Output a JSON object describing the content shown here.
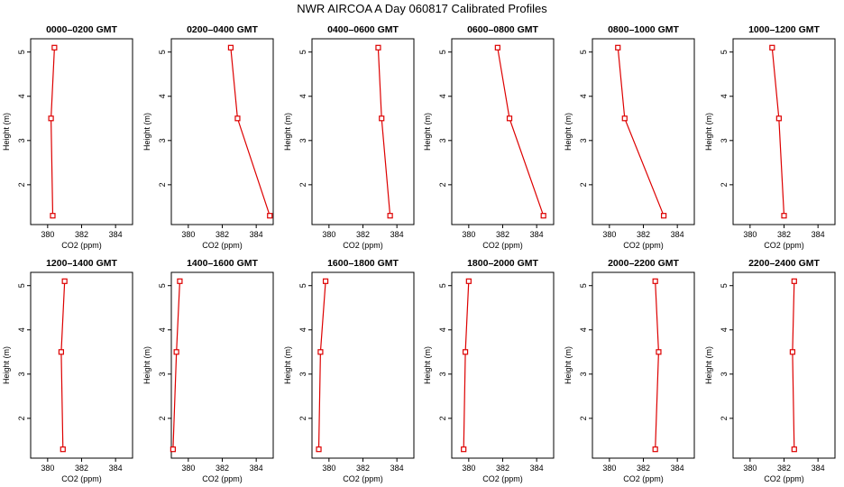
{
  "figure": {
    "title": "NWR AIRCOA A  Day 060817  Calibrated Profiles"
  },
  "chart_data": [
    {
      "type": "line",
      "title": "0000–0200 GMT",
      "xlabel": "CO2 (ppm)",
      "ylabel": "Height (m)",
      "xlim": [
        379,
        385
      ],
      "ylim": [
        1.1,
        5.3
      ],
      "xticks": [
        380,
        382,
        384
      ],
      "yticks": [
        2,
        3,
        4,
        5
      ],
      "series": [
        {
          "name": "profile",
          "color": "#dd0000",
          "points": [
            {
              "x": 380.3,
              "y": 1.3
            },
            {
              "x": 380.2,
              "y": 3.5
            },
            {
              "x": 380.4,
              "y": 5.1
            }
          ]
        }
      ]
    },
    {
      "type": "line",
      "title": "0200–0400 GMT",
      "xlabel": "CO2 (ppm)",
      "ylabel": "Height (m)",
      "xlim": [
        379,
        385
      ],
      "ylim": [
        1.1,
        5.3
      ],
      "xticks": [
        380,
        382,
        384
      ],
      "yticks": [
        2,
        3,
        4,
        5
      ],
      "series": [
        {
          "name": "profile",
          "color": "#dd0000",
          "points": [
            {
              "x": 384.8,
              "y": 1.3
            },
            {
              "x": 382.9,
              "y": 3.5
            },
            {
              "x": 382.5,
              "y": 5.1
            }
          ]
        }
      ]
    },
    {
      "type": "line",
      "title": "0400–0600 GMT",
      "xlabel": "CO2 (ppm)",
      "ylabel": "Height (m)",
      "xlim": [
        379,
        385
      ],
      "ylim": [
        1.1,
        5.3
      ],
      "xticks": [
        380,
        382,
        384
      ],
      "yticks": [
        2,
        3,
        4,
        5
      ],
      "series": [
        {
          "name": "profile",
          "color": "#dd0000",
          "points": [
            {
              "x": 383.6,
              "y": 1.3
            },
            {
              "x": 383.1,
              "y": 3.5
            },
            {
              "x": 382.9,
              "y": 5.1
            }
          ]
        }
      ]
    },
    {
      "type": "line",
      "title": "0600–0800 GMT",
      "xlabel": "CO2 (ppm)",
      "ylabel": "Height (m)",
      "xlim": [
        379,
        385
      ],
      "ylim": [
        1.1,
        5.3
      ],
      "xticks": [
        380,
        382,
        384
      ],
      "yticks": [
        2,
        3,
        4,
        5
      ],
      "series": [
        {
          "name": "profile",
          "color": "#dd0000",
          "points": [
            {
              "x": 384.4,
              "y": 1.3
            },
            {
              "x": 382.4,
              "y": 3.5
            },
            {
              "x": 381.7,
              "y": 5.1
            }
          ]
        }
      ]
    },
    {
      "type": "line",
      "title": "0800–1000 GMT",
      "xlabel": "CO2 (ppm)",
      "ylabel": "Height (m)",
      "xlim": [
        379,
        385
      ],
      "ylim": [
        1.1,
        5.3
      ],
      "xticks": [
        380,
        382,
        384
      ],
      "yticks": [
        2,
        3,
        4,
        5
      ],
      "series": [
        {
          "name": "profile",
          "color": "#dd0000",
          "points": [
            {
              "x": 383.2,
              "y": 1.3
            },
            {
              "x": 380.9,
              "y": 3.5
            },
            {
              "x": 380.5,
              "y": 5.1
            }
          ]
        }
      ]
    },
    {
      "type": "line",
      "title": "1000–1200 GMT",
      "xlabel": "CO2 (ppm)",
      "ylabel": "Height (m)",
      "xlim": [
        379,
        385
      ],
      "ylim": [
        1.1,
        5.3
      ],
      "xticks": [
        380,
        382,
        384
      ],
      "yticks": [
        2,
        3,
        4,
        5
      ],
      "series": [
        {
          "name": "profile",
          "color": "#dd0000",
          "points": [
            {
              "x": 382.0,
              "y": 1.3
            },
            {
              "x": 381.7,
              "y": 3.5
            },
            {
              "x": 381.3,
              "y": 5.1
            }
          ]
        }
      ]
    },
    {
      "type": "line",
      "title": "1200–1400 GMT",
      "xlabel": "CO2 (ppm)",
      "ylabel": "Height (m)",
      "xlim": [
        379,
        385
      ],
      "ylim": [
        1.1,
        5.3
      ],
      "xticks": [
        380,
        382,
        384
      ],
      "yticks": [
        2,
        3,
        4,
        5
      ],
      "series": [
        {
          "name": "profile",
          "color": "#dd0000",
          "points": [
            {
              "x": 380.9,
              "y": 1.3
            },
            {
              "x": 380.8,
              "y": 3.5
            },
            {
              "x": 381.0,
              "y": 5.1
            }
          ]
        }
      ]
    },
    {
      "type": "line",
      "title": "1400–1600 GMT",
      "xlabel": "CO2 (ppm)",
      "ylabel": "Height (m)",
      "xlim": [
        379,
        385
      ],
      "ylim": [
        1.1,
        5.3
      ],
      "xticks": [
        380,
        382,
        384
      ],
      "yticks": [
        2,
        3,
        4,
        5
      ],
      "series": [
        {
          "name": "profile",
          "color": "#dd0000",
          "points": [
            {
              "x": 379.1,
              "y": 1.3
            },
            {
              "x": 379.3,
              "y": 3.5
            },
            {
              "x": 379.5,
              "y": 5.1
            }
          ]
        }
      ]
    },
    {
      "type": "line",
      "title": "1600–1800 GMT",
      "xlabel": "CO2 (ppm)",
      "ylabel": "Height (m)",
      "xlim": [
        379,
        385
      ],
      "ylim": [
        1.1,
        5.3
      ],
      "xticks": [
        380,
        382,
        384
      ],
      "yticks": [
        2,
        3,
        4,
        5
      ],
      "series": [
        {
          "name": "profile",
          "color": "#dd0000",
          "points": [
            {
              "x": 379.4,
              "y": 1.3
            },
            {
              "x": 379.5,
              "y": 3.5
            },
            {
              "x": 379.8,
              "y": 5.1
            }
          ]
        }
      ]
    },
    {
      "type": "line",
      "title": "1800–2000 GMT",
      "xlabel": "CO2 (ppm)",
      "ylabel": "Height (m)",
      "xlim": [
        379,
        385
      ],
      "ylim": [
        1.1,
        5.3
      ],
      "xticks": [
        380,
        382,
        384
      ],
      "yticks": [
        2,
        3,
        4,
        5
      ],
      "series": [
        {
          "name": "profile",
          "color": "#dd0000",
          "points": [
            {
              "x": 379.7,
              "y": 1.3
            },
            {
              "x": 379.8,
              "y": 3.5
            },
            {
              "x": 380.0,
              "y": 5.1
            }
          ]
        }
      ]
    },
    {
      "type": "line",
      "title": "2000–2200 GMT",
      "xlabel": "CO2 (ppm)",
      "ylabel": "Height (m)",
      "xlim": [
        379,
        385
      ],
      "ylim": [
        1.1,
        5.3
      ],
      "xticks": [
        380,
        382,
        384
      ],
      "yticks": [
        2,
        3,
        4,
        5
      ],
      "series": [
        {
          "name": "profile",
          "color": "#dd0000",
          "points": [
            {
              "x": 382.7,
              "y": 1.3
            },
            {
              "x": 382.9,
              "y": 3.5
            },
            {
              "x": 382.7,
              "y": 5.1
            }
          ]
        }
      ]
    },
    {
      "type": "line",
      "title": "2200–2400 GMT",
      "xlabel": "CO2 (ppm)",
      "ylabel": "Height (m)",
      "xlim": [
        379,
        385
      ],
      "ylim": [
        1.1,
        5.3
      ],
      "xticks": [
        380,
        382,
        384
      ],
      "yticks": [
        2,
        3,
        4,
        5
      ],
      "series": [
        {
          "name": "profile",
          "color": "#dd0000",
          "points": [
            {
              "x": 382.6,
              "y": 1.3
            },
            {
              "x": 382.5,
              "y": 3.5
            },
            {
              "x": 382.6,
              "y": 5.1
            }
          ]
        }
      ]
    }
  ]
}
